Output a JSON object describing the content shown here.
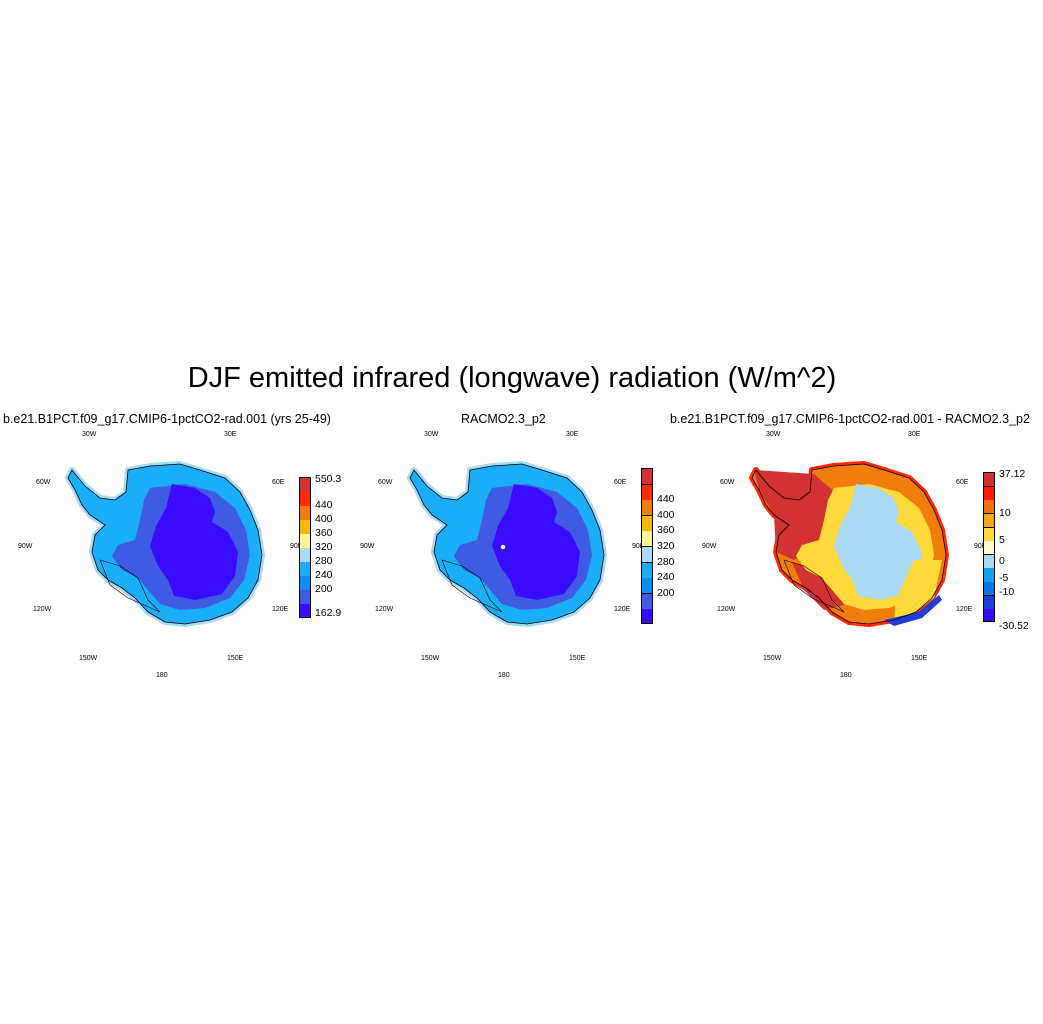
{
  "figure": {
    "title": "DJF emitted infrared (longwave) radiation (W/m^2)"
  },
  "lon_labels": [
    "30W",
    "30E",
    "60W",
    "60E",
    "90W",
    "90E",
    "120W",
    "120E",
    "150W",
    "150E",
    "180"
  ],
  "panels": [
    {
      "title": "b.e21.B1PCT.f09_g17.CMIP6-1pctCO2-rad.001 (yrs 25-49)",
      "colorbar": {
        "colors": [
          "#3a0cff",
          "#3f5ae3",
          "#0e8ff0",
          "#19aef7",
          "#a9d9f3",
          "#fff39a",
          "#f7b800",
          "#f07d0c",
          "#ff2a00",
          "#d23232"
        ],
        "labels": [
          "162.9",
          "200",
          "240",
          "280",
          "320",
          "360",
          "400",
          "440",
          "550.3"
        ]
      },
      "fields": {
        "land": "#19aef7",
        "coast_pale": "#a9d9f3",
        "mid": "#3f5ae3",
        "core": "#3a0cff"
      }
    },
    {
      "title": "RACMO2.3_p2",
      "colorbar": {
        "colors": [
          "#3a0cff",
          "#3f5ae3",
          "#0e8ff0",
          "#19aef7",
          "#a9d9f3",
          "#fff39a",
          "#f7b800",
          "#f07d0c",
          "#ff2a00",
          "#d23232"
        ],
        "labels": [
          "200",
          "240",
          "280",
          "320",
          "360",
          "400",
          "440"
        ]
      },
      "fields": {
        "land": "#19aef7",
        "coast_pale": "#a9d9f3",
        "mid": "#3f5ae3",
        "core": "#3a0cff"
      }
    },
    {
      "title": "b.e21.B1PCT.f09_g17.CMIP6-1pctCO2-rad.001 - RACMO2.3_p2",
      "colorbar": {
        "colors": [
          "#3a0cff",
          "#1e3cd8",
          "#0e72e8",
          "#12a0f0",
          "#a9d9f3",
          "#fffbd0",
          "#ffd93a",
          "#f7a800",
          "#f27010",
          "#ff1a00",
          "#d23232"
        ],
        "labels": [
          "-30.52",
          "-10",
          "-5",
          "0",
          "5",
          "10",
          "37.12"
        ]
      },
      "fields": {
        "land": "#f07d0c",
        "coast_pale": "#ff2a00",
        "mid": "#ffd93a",
        "core": "#a9d9f3",
        "dark": "#d23232",
        "blue": "#1e3cd8"
      }
    }
  ]
}
